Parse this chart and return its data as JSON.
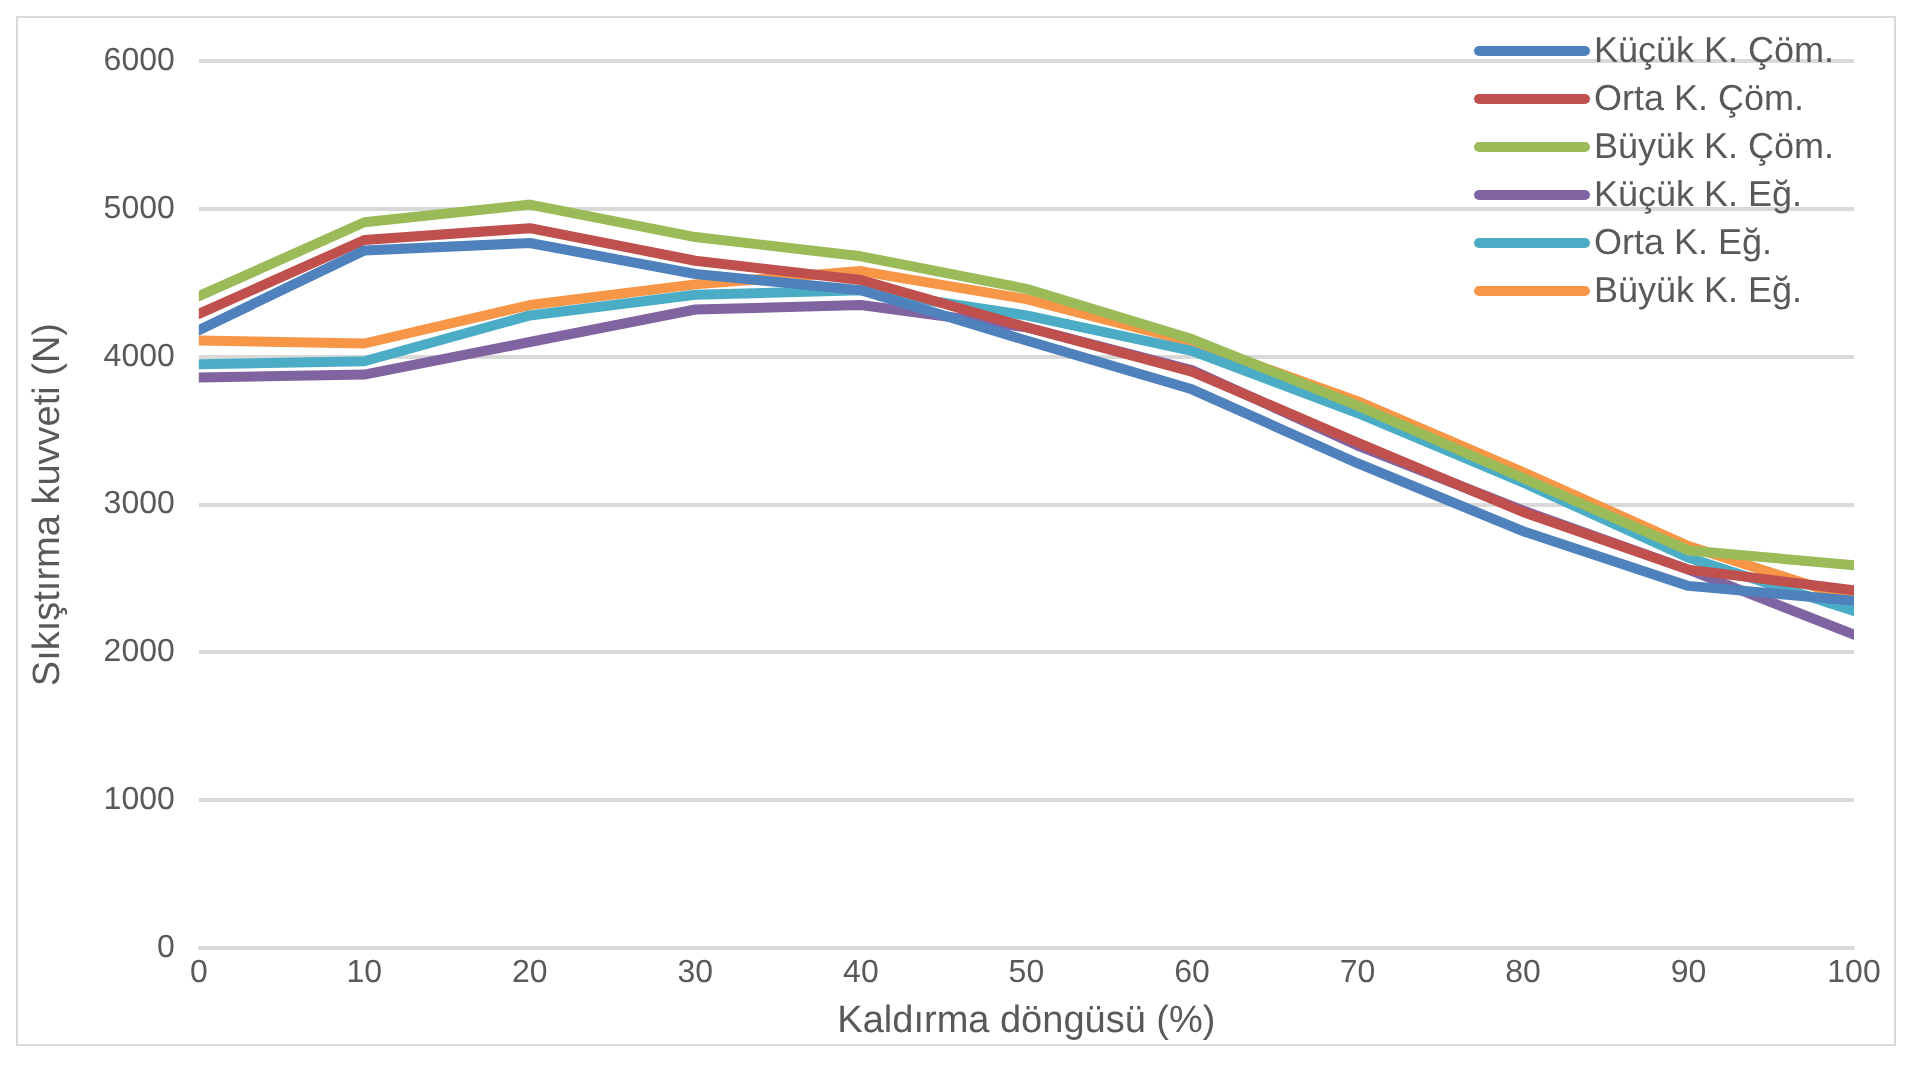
{
  "chart_data": {
    "type": "line",
    "xlabel": "Kaldırma döngüsü (%)",
    "ylabel": "Sıkıştırma kuvveti (N)",
    "x": [
      0,
      10,
      20,
      30,
      40,
      50,
      60,
      70,
      80,
      90,
      100
    ],
    "xlim": [
      0,
      100
    ],
    "xticks": [
      0,
      10,
      20,
      30,
      40,
      50,
      60,
      70,
      80,
      90,
      100
    ],
    "ylim": [
      0,
      6000
    ],
    "yticks": [
      0,
      1000,
      2000,
      3000,
      4000,
      5000,
      6000
    ],
    "grid": "y",
    "legend": "top right",
    "marker": "none",
    "line_style": "solid",
    "series": [
      {
        "name": "Küçük K. Çöm.",
        "color": "#4f81bd",
        "values": [
          4180,
          4720,
          4770,
          4560,
          4450,
          4110,
          3780,
          3280,
          2820,
          2450,
          2350
        ]
      },
      {
        "name": "Orta K. Çöm.",
        "color": "#c0504d",
        "values": [
          4290,
          4790,
          4870,
          4650,
          4520,
          4200,
          3900,
          3420,
          2950,
          2560,
          2420
        ]
      },
      {
        "name": "Büyük K. Çöm.",
        "color": "#9bbb59",
        "values": [
          4410,
          4910,
          5030,
          4810,
          4680,
          4460,
          4120,
          3670,
          3180,
          2690,
          2590
        ]
      },
      {
        "name": "Küçük K. Eğ.",
        "color": "#8064a2",
        "values": [
          3860,
          3880,
          4100,
          4320,
          4350,
          4200,
          3910,
          3400,
          2960,
          2560,
          2120
        ]
      },
      {
        "name": "Orta K. Eğ.",
        "color": "#4bacc6",
        "values": [
          3950,
          3970,
          4280,
          4420,
          4450,
          4280,
          4040,
          3620,
          3150,
          2640,
          2280
        ]
      },
      {
        "name": "Büyük K. Eğ.",
        "color": "#f79646",
        "values": [
          4110,
          4090,
          4350,
          4490,
          4580,
          4390,
          4100,
          3700,
          3220,
          2720,
          2360
        ]
      }
    ]
  }
}
